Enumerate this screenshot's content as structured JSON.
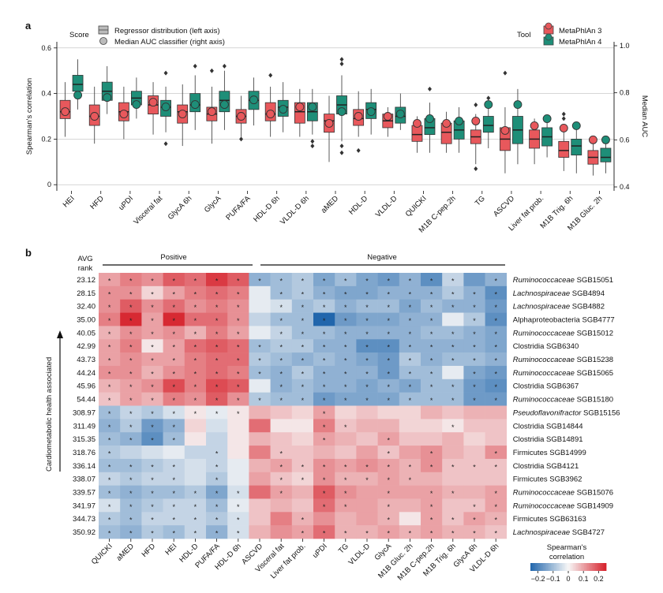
{
  "panel_a": {
    "letter": "a",
    "score_title": "Score",
    "tool_title": "Tool",
    "legend_score": [
      "Regressor distribution (left axis)",
      "Median AUC classifier (right axis)"
    ],
    "legend_tool": [
      "MetaPhlAn 3",
      "MetaPhlAn 4"
    ],
    "colors": {
      "mpa3": "#e8585c",
      "mpa4": "#1e8e78"
    }
  },
  "panel_b": {
    "letter": "b",
    "avg_rank_label_1": "AVG",
    "avg_rank_label_2": "rank",
    "positive_label": "Positive",
    "negative_label": "Negative",
    "side_label": "Cardiometabolic health associated",
    "colorbar_title_1": "Spearman's",
    "colorbar_title_2": "correlation",
    "colorbar_ticks": [
      "−0.2",
      "−0.1",
      "0",
      "0.1",
      "0.2"
    ],
    "colors": {
      "neg": "#2166ac",
      "mid": "#f7f7f7",
      "pos": "#d6202a"
    }
  },
  "chart_data": [
    {
      "type": "box",
      "title": "",
      "xlabel": "",
      "ylabel": "Spearman's correlation",
      "ylabel_right": "Median AUC",
      "ylim": [
        -0.02,
        0.62
      ],
      "yticks": [
        "0",
        "0.2",
        "0.4",
        "0.6"
      ],
      "ylim_right": [
        0.39,
        1.01
      ],
      "yticks_right": [
        "0.4",
        "0.6",
        "0.8",
        "1.0"
      ],
      "series_names": [
        "MetaPhlAn 3",
        "MetaPhlAn 4"
      ],
      "categories": [
        "HEI",
        "HFD",
        "uPDI",
        "Visceral fat",
        "GlycA 6h",
        "GlycA",
        "PUFA/FA",
        "HDL-D 6h",
        "VLDL-D 6h",
        "aMED",
        "HDL-D",
        "VLDL-D",
        "QUICKI",
        "M1B C-pep.2h",
        "TG",
        "ASCVD",
        "Liver fat prob.",
        "M1B Trig. 6h",
        "M1B Gluc. 2h"
      ],
      "boxes": [
        {
          "mpa3": [
            0.21,
            0.29,
            0.32,
            0.37,
            0.45
          ],
          "mpa4": [
            0.33,
            0.41,
            0.44,
            0.48,
            0.55
          ]
        },
        {
          "mpa3": [
            0.18,
            0.26,
            0.3,
            0.35,
            0.43
          ],
          "mpa4": [
            0.31,
            0.37,
            0.41,
            0.45,
            0.52
          ]
        },
        {
          "mpa3": [
            0.2,
            0.28,
            0.32,
            0.36,
            0.43
          ],
          "mpa4": [
            0.29,
            0.35,
            0.38,
            0.41,
            0.47
          ]
        },
        {
          "mpa3": [
            0.22,
            0.31,
            0.35,
            0.39,
            0.45
          ],
          "mpa4": [
            0.23,
            0.3,
            0.34,
            0.37,
            0.43
          ]
        },
        {
          "mpa3": [
            0.17,
            0.27,
            0.32,
            0.35,
            0.44
          ],
          "mpa4": [
            0.24,
            0.32,
            0.35,
            0.4,
            0.48
          ]
        },
        {
          "mpa3": [
            0.18,
            0.28,
            0.31,
            0.34,
            0.43
          ],
          "mpa4": [
            0.24,
            0.32,
            0.37,
            0.41,
            0.5
          ]
        },
        {
          "mpa3": [
            0.21,
            0.27,
            0.3,
            0.33,
            0.39
          ],
          "mpa4": [
            0.26,
            0.33,
            0.37,
            0.41,
            0.47
          ]
        },
        {
          "mpa3": [
            0.21,
            0.28,
            0.31,
            0.36,
            0.43
          ],
          "mpa4": [
            0.23,
            0.3,
            0.34,
            0.37,
            0.45
          ]
        },
        {
          "mpa3": [
            0.21,
            0.27,
            0.32,
            0.36,
            0.42
          ],
          "mpa4": [
            0.22,
            0.28,
            0.32,
            0.36,
            0.42
          ]
        },
        {
          "mpa3": [
            0.1,
            0.23,
            0.28,
            0.31,
            0.39
          ],
          "mpa4": [
            0.19,
            0.31,
            0.35,
            0.39,
            0.48
          ]
        },
        {
          "mpa3": [
            0.21,
            0.26,
            0.29,
            0.33,
            0.41
          ],
          "mpa4": [
            0.22,
            0.29,
            0.33,
            0.36,
            0.42
          ]
        },
        {
          "mpa3": [
            0.21,
            0.25,
            0.28,
            0.31,
            0.34
          ],
          "mpa4": [
            0.24,
            0.27,
            0.3,
            0.34,
            0.4
          ]
        },
        {
          "mpa3": [
            0.14,
            0.19,
            0.22,
            0.26,
            0.3
          ],
          "mpa4": [
            0.14,
            0.22,
            0.25,
            0.29,
            0.36
          ]
        },
        {
          "mpa3": [
            0.14,
            0.18,
            0.23,
            0.27,
            0.32
          ],
          "mpa4": [
            0.14,
            0.2,
            0.24,
            0.28,
            0.34
          ]
        },
        {
          "mpa3": [
            0.09,
            0.18,
            0.21,
            0.24,
            0.31
          ],
          "mpa4": [
            0.16,
            0.23,
            0.26,
            0.3,
            0.36
          ]
        },
        {
          "mpa3": [
            0.05,
            0.15,
            0.2,
            0.25,
            0.34
          ],
          "mpa4": [
            0.09,
            0.18,
            0.24,
            0.3,
            0.42
          ]
        },
        {
          "mpa3": [
            0.09,
            0.16,
            0.2,
            0.24,
            0.29
          ],
          "mpa4": [
            0.12,
            0.17,
            0.21,
            0.25,
            0.29
          ]
        },
        {
          "mpa3": [
            0.06,
            0.12,
            0.15,
            0.19,
            0.26
          ],
          "mpa4": [
            0.05,
            0.13,
            0.17,
            0.2,
            0.27
          ]
        },
        {
          "mpa3": [
            0.04,
            0.09,
            0.12,
            0.15,
            0.2
          ],
          "mpa4": [
            0.05,
            0.1,
            0.12,
            0.16,
            0.2
          ]
        }
      ],
      "outliers": [
        {
          "index": 3,
          "mpa4": [
            0.49,
            0.18
          ]
        },
        {
          "index": 4,
          "mpa4": [
            0.52
          ]
        },
        {
          "index": 5,
          "mpa3": [
            0.5
          ],
          "mpa4": [
            0.52
          ]
        },
        {
          "index": 6,
          "mpa3": [
            0.2
          ]
        },
        {
          "index": 7,
          "mpa3": [
            0.48
          ]
        },
        {
          "index": 8,
          "mpa4": [
            0.17,
            0.19
          ]
        },
        {
          "index": 9,
          "mpa4": [
            0.55,
            0.53,
            0.17,
            0.14
          ]
        },
        {
          "index": 10,
          "mpa3": [
            0.15
          ]
        },
        {
          "index": 12,
          "mpa4": [
            0.42
          ]
        },
        {
          "index": 14,
          "mpa3": [
            0.35,
            0.07
          ],
          "mpa4": [
            0.38
          ]
        },
        {
          "index": 15,
          "mpa3": [
            0.49
          ]
        },
        {
          "index": 17,
          "mpa3": [
            0.31,
            0.29
          ]
        }
      ],
      "median_auc": [
        {
          "mpa3": 0.72,
          "mpa4": 0.79
        },
        {
          "mpa3": 0.7,
          "mpa4": 0.78
        },
        {
          "mpa3": 0.71,
          "mpa4": 0.75
        },
        {
          "mpa3": 0.76,
          "mpa4": 0.74
        },
        {
          "mpa3": 0.71,
          "mpa4": 0.75
        },
        {
          "mpa3": 0.72,
          "mpa4": 0.75
        },
        {
          "mpa3": 0.7,
          "mpa4": 0.77
        },
        {
          "mpa3": 0.71,
          "mpa4": 0.73
        },
        {
          "mpa3": 0.74,
          "mpa4": 0.74
        },
        {
          "mpa3": 0.67,
          "mpa4": 0.72
        },
        {
          "mpa3": 0.7,
          "mpa4": 0.72
        },
        {
          "mpa3": 0.7,
          "mpa4": 0.71
        },
        {
          "mpa3": 0.67,
          "mpa4": 0.69
        },
        {
          "mpa3": 0.67,
          "mpa4": 0.68
        },
        {
          "mpa3": 0.68,
          "mpa4": 0.75
        },
        {
          "mpa3": 0.64,
          "mpa4": 0.75
        },
        {
          "mpa3": 0.66,
          "mpa4": 0.69
        },
        {
          "mpa3": 0.65,
          "mpa4": 0.66
        },
        {
          "mpa3": 0.6,
          "mpa4": 0.6
        }
      ]
    },
    {
      "type": "heatmap",
      "title": "",
      "x": [
        "QUICKI",
        "aMED",
        "HFD",
        "HEI",
        "HDL-D",
        "PUFA/FA",
        "HDL-D 6h",
        "ASCVD",
        "Visceral fat",
        "Liver fat prob.",
        "uPDI",
        "TG",
        "VLDL-D",
        "GlycA",
        "M1B Gluc. 2h",
        "M1B C-pep.2h",
        "M1B Trig. 6h",
        "GlycA 6h",
        "VLDL-D 6h"
      ],
      "avg_rank": [
        "23.12",
        "28.15",
        "32.40",
        "35.00",
        "40.05",
        "42.99",
        "43.73",
        "44.24",
        "45.96",
        "54.44",
        "308.97",
        "311.49",
        "315.35",
        "318.76",
        "336.14",
        "338.07",
        "339.57",
        "341.97",
        "344.73",
        "350.92"
      ],
      "rows": [
        {
          "family": "Ruminococcaceae",
          "strain": "SGB15051",
          "italic": true
        },
        {
          "family": "Lachnospiraceae",
          "strain": "SGB4894",
          "italic": true
        },
        {
          "family": "Lachnospiraceae",
          "strain": "SGB4882",
          "italic": true
        },
        {
          "family": "Alphaproteobacteria",
          "strain": "SGB4777",
          "italic": false
        },
        {
          "family": "Ruminococcaceae",
          "strain": "SGB15012",
          "italic": true
        },
        {
          "family": "Clostridia",
          "strain": "SGB6340",
          "italic": false
        },
        {
          "family": "Ruminococcaceae",
          "strain": "SGB15238",
          "italic": true
        },
        {
          "family": "Ruminococcaceae",
          "strain": "SGB15065",
          "italic": true
        },
        {
          "family": "Clostridia",
          "strain": "SGB6367",
          "italic": false
        },
        {
          "family": "Ruminococcaceae",
          "strain": "SGB15180",
          "italic": true
        },
        {
          "family": "Pseudoflavonifractor",
          "strain": "SGB15156",
          "italic": true
        },
        {
          "family": "Clostridia",
          "strain": "SGB14844",
          "italic": false
        },
        {
          "family": "Clostridia",
          "strain": "SGB14891",
          "italic": false
        },
        {
          "family": "Firmicutes",
          "strain": "SGB14999",
          "italic": false
        },
        {
          "family": "Clostridia",
          "strain": "SGB4121",
          "italic": false
        },
        {
          "family": "Firmicutes",
          "strain": "SGB3962",
          "italic": false
        },
        {
          "family": "Ruminococcaceae",
          "strain": "SGB15076",
          "italic": true
        },
        {
          "family": "Ruminococcaceae",
          "strain": "SGB14909",
          "italic": true
        },
        {
          "family": "Firmicutes",
          "strain": "SGB63163",
          "italic": false
        },
        {
          "family": "Lachnospiraceae",
          "strain": "SGB4727",
          "italic": true
        }
      ],
      "values": [
        [
          0.1,
          0.14,
          0.12,
          0.18,
          0.16,
          0.22,
          0.18,
          -0.12,
          -0.1,
          -0.08,
          -0.14,
          -0.1,
          -0.14,
          -0.16,
          -0.12,
          -0.18,
          -0.06,
          -0.16,
          -0.12
        ],
        [
          0.12,
          0.12,
          0.04,
          0.1,
          0.14,
          0.16,
          0.14,
          -0.02,
          -0.1,
          -0.08,
          -0.12,
          -0.14,
          -0.14,
          -0.12,
          -0.12,
          -0.12,
          -0.08,
          -0.12,
          -0.18
        ],
        [
          0.12,
          0.18,
          0.12,
          0.16,
          0.12,
          0.14,
          0.12,
          -0.02,
          -0.04,
          -0.1,
          -0.08,
          -0.12,
          -0.1,
          -0.1,
          -0.14,
          -0.1,
          -0.12,
          -0.12,
          -0.16
        ],
        [
          0.14,
          0.24,
          0.1,
          0.24,
          0.16,
          0.16,
          0.12,
          -0.06,
          -0.1,
          -0.1,
          -0.26,
          -0.16,
          -0.14,
          -0.14,
          -0.12,
          -0.12,
          -0.02,
          -0.08,
          -0.18
        ],
        [
          0.08,
          0.12,
          0.1,
          0.12,
          0.08,
          0.14,
          0.1,
          -0.02,
          -0.06,
          -0.1,
          -0.1,
          -0.12,
          -0.12,
          -0.12,
          -0.12,
          -0.1,
          -0.1,
          -0.12,
          -0.14
        ],
        [
          0.1,
          0.14,
          0.02,
          0.1,
          0.16,
          0.18,
          0.16,
          -0.1,
          -0.08,
          -0.08,
          -0.12,
          -0.12,
          -0.18,
          -0.18,
          -0.12,
          -0.12,
          -0.12,
          -0.12,
          -0.14
        ],
        [
          0.1,
          0.12,
          0.1,
          0.1,
          0.14,
          0.16,
          0.16,
          -0.08,
          -0.1,
          -0.12,
          -0.1,
          -0.12,
          -0.14,
          -0.16,
          -0.08,
          -0.12,
          -0.1,
          -0.1,
          -0.12
        ],
        [
          0.12,
          0.12,
          0.08,
          0.12,
          0.14,
          0.16,
          0.14,
          -0.1,
          -0.12,
          -0.08,
          -0.12,
          -0.12,
          -0.12,
          -0.16,
          -0.1,
          -0.1,
          -0.02,
          -0.14,
          -0.16
        ],
        [
          0.08,
          0.1,
          0.12,
          0.2,
          0.14,
          0.2,
          0.18,
          -0.02,
          -0.12,
          -0.1,
          -0.12,
          -0.12,
          -0.14,
          -0.12,
          -0.14,
          -0.1,
          -0.1,
          -0.16,
          -0.18
        ],
        [
          0.06,
          0.1,
          0.08,
          0.14,
          0.12,
          0.18,
          0.12,
          -0.08,
          -0.1,
          -0.1,
          -0.16,
          -0.14,
          -0.14,
          -0.14,
          -0.1,
          -0.1,
          -0.1,
          -0.16,
          -0.16
        ],
        [
          -0.1,
          -0.06,
          -0.08,
          -0.04,
          0.02,
          -0.02,
          0.02,
          0.08,
          0.06,
          0.04,
          0.1,
          0.04,
          0.06,
          0.04,
          0.04,
          0.08,
          0.06,
          0.08,
          0.08
        ],
        [
          -0.12,
          -0.08,
          -0.16,
          -0.12,
          0.04,
          -0.04,
          0.02,
          0.16,
          0.02,
          0.02,
          0.14,
          0.06,
          0.08,
          0.08,
          0.04,
          0.04,
          0.02,
          0.06,
          0.06
        ],
        [
          -0.1,
          -0.12,
          -0.18,
          -0.1,
          0.02,
          -0.06,
          0.02,
          0.08,
          0.06,
          0.04,
          0.1,
          0.08,
          0.06,
          0.1,
          0.06,
          0.06,
          0.08,
          0.04,
          0.06
        ],
        [
          -0.08,
          -0.06,
          -0.04,
          -0.02,
          -0.06,
          -0.06,
          0.02,
          0.14,
          0.06,
          0.06,
          0.08,
          0.06,
          0.1,
          0.06,
          0.1,
          0.12,
          0.08,
          0.06,
          0.12
        ],
        [
          -0.1,
          -0.1,
          -0.08,
          -0.06,
          -0.04,
          -0.06,
          -0.02,
          0.08,
          0.1,
          0.06,
          0.12,
          0.1,
          0.12,
          0.1,
          0.08,
          0.12,
          0.06,
          0.06,
          0.06
        ],
        [
          -0.06,
          -0.08,
          -0.06,
          -0.06,
          -0.04,
          -0.08,
          -0.02,
          0.1,
          0.06,
          0.04,
          0.12,
          0.08,
          0.08,
          0.1,
          0.08,
          0.08,
          0.06,
          0.06,
          0.06
        ],
        [
          -0.1,
          -0.12,
          -0.1,
          -0.1,
          -0.08,
          -0.14,
          -0.04,
          0.16,
          0.1,
          0.08,
          0.18,
          0.12,
          0.1,
          0.1,
          0.1,
          0.1,
          0.08,
          0.08,
          0.1
        ],
        [
          -0.04,
          -0.1,
          -0.08,
          -0.06,
          -0.06,
          -0.1,
          -0.02,
          0.06,
          0.08,
          0.06,
          0.16,
          0.1,
          0.1,
          0.08,
          0.08,
          0.1,
          0.06,
          0.06,
          0.1
        ],
        [
          -0.08,
          -0.1,
          -0.06,
          -0.06,
          -0.06,
          -0.08,
          -0.04,
          0.06,
          0.14,
          0.08,
          0.12,
          0.08,
          0.1,
          0.08,
          0.02,
          0.1,
          0.06,
          0.1,
          0.08
        ],
        [
          -0.1,
          -0.12,
          -0.08,
          -0.1,
          -0.06,
          -0.12,
          -0.04,
          0.08,
          0.12,
          0.1,
          0.16,
          0.08,
          0.08,
          0.1,
          0.08,
          0.1,
          0.08,
          0.08,
          0.06
        ]
      ],
      "significant": [
        "1111111111111111101",
        "1111111011111111111",
        "1111111011111111111",
        "1111111011111111011",
        "1111111011111111111",
        "1111111111111111111",
        "1111111111111111111",
        "1111111111111111011",
        "1111111011111111111",
        "1111111111111111111",
        "1111111000100000000",
        "1111000000110000100",
        "1111000000100100000",
        "1000010010000101001",
        "1111010011111111111",
        "1111010011111110000",
        "1111111010110101101",
        "1111111000110101011",
        "1111111001000101111",
        "1111111001111111111"
      ]
    }
  ]
}
